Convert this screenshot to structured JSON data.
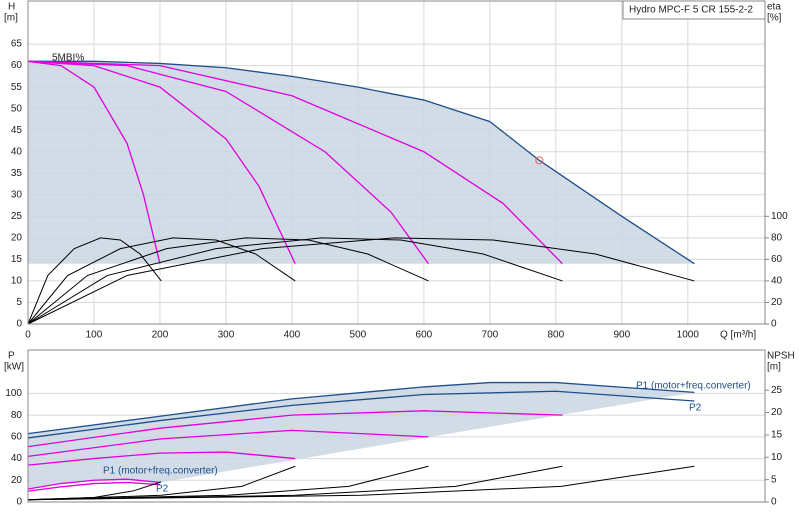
{
  "chart_data": [
    {
      "type": "line",
      "title": "Hydro MPC-F 5 CR 155-2-2",
      "annotation": "5MBI%",
      "y_label": "H",
      "y_unit": "[m]",
      "y2_label": "eta",
      "y2_unit": "[%]",
      "x_label": "Q [m³/h]",
      "xlim": [
        0,
        1117
      ],
      "xticks": [
        0,
        100,
        200,
        300,
        400,
        500,
        600,
        700,
        800,
        900,
        1000
      ],
      "ylim": [
        0,
        75
      ],
      "yticks": [
        0,
        5,
        10,
        15,
        20,
        25,
        30,
        35,
        40,
        45,
        50,
        55,
        60,
        65
      ],
      "y2lim": [
        0,
        300
      ],
      "y2ticks": [
        0,
        20,
        40,
        60,
        80,
        100
      ],
      "grid": true,
      "area_color": "#c9d6e3",
      "point": {
        "x": 775,
        "y": 38,
        "color": "#e06060"
      },
      "series": [
        {
          "color": "#1f4e8c",
          "x": [
            0,
            100,
            200,
            300,
            400,
            500,
            600,
            700,
            775,
            900,
            1010
          ],
          "values": [
            61,
            61,
            60.5,
            59.5,
            57.5,
            55,
            52,
            47,
            38,
            25,
            14
          ]
        },
        {
          "color": "#e000e0",
          "x": [
            0,
            50,
            100,
            150,
            175,
            200
          ],
          "values": [
            61,
            60,
            55,
            42,
            30,
            14
          ]
        },
        {
          "color": "#e000e0",
          "x": [
            0,
            100,
            200,
            300,
            350,
            405
          ],
          "values": [
            61,
            60,
            55,
            43,
            32,
            14
          ]
        },
        {
          "color": "#e000e0",
          "x": [
            0,
            150,
            300,
            450,
            550,
            607
          ],
          "values": [
            61,
            60,
            54,
            40,
            26,
            14
          ]
        },
        {
          "color": "#e000e0",
          "x": [
            0,
            200,
            400,
            600,
            720,
            810
          ],
          "values": [
            61,
            60,
            53,
            40,
            28,
            14
          ]
        },
        {
          "color": "#000000",
          "axis": "y2",
          "x": [
            0,
            30,
            70,
            110,
            140,
            170,
            202
          ],
          "values": [
            0,
            45,
            70,
            80,
            78,
            65,
            40
          ]
        },
        {
          "color": "#000000",
          "axis": "y2",
          "x": [
            0,
            60,
            140,
            220,
            285,
            345,
            405
          ],
          "values": [
            0,
            45,
            70,
            80,
            78,
            65,
            40
          ]
        },
        {
          "color": "#000000",
          "axis": "y2",
          "x": [
            0,
            90,
            210,
            330,
            425,
            515,
            607
          ],
          "values": [
            0,
            45,
            70,
            80,
            78,
            65,
            40
          ]
        },
        {
          "color": "#000000",
          "axis": "y2",
          "x": [
            0,
            120,
            285,
            445,
            565,
            690,
            810
          ],
          "values": [
            0,
            45,
            70,
            80,
            78,
            65,
            40
          ]
        },
        {
          "color": "#000000",
          "axis": "y2",
          "x": [
            0,
            150,
            355,
            555,
            705,
            860,
            1010
          ],
          "values": [
            0,
            45,
            70,
            80,
            78,
            65,
            40
          ]
        }
      ]
    },
    {
      "type": "line",
      "y_label": "P",
      "y_unit": "[kW]",
      "y2_label": "NPSH",
      "y2_unit": "[m]",
      "xlim": [
        0,
        1117
      ],
      "ylim": [
        0,
        140
      ],
      "yticks": [
        0,
        20,
        40,
        60,
        80,
        100
      ],
      "y2lim": [
        0,
        34
      ],
      "y2ticks": [
        0,
        5,
        10,
        15,
        20,
        25
      ],
      "grid": true,
      "area_color": "#c9d6e3",
      "annotations": [
        "P1 (motor+freq.converter)",
        "P2",
        "P1 (motor+freq.converter)",
        "P2"
      ],
      "series": [
        {
          "color": "#1f4e8c",
          "x": [
            0,
            200,
            400,
            600,
            700,
            800,
            1010
          ],
          "values": [
            63,
            79,
            95,
            106,
            110,
            110,
            101
          ]
        },
        {
          "color": "#1f4e8c",
          "x": [
            0,
            200,
            400,
            600,
            800,
            1010
          ],
          "values": [
            59,
            75,
            89,
            99,
            102,
            93
          ]
        },
        {
          "color": "#e000e0",
          "x": [
            0,
            200,
            400,
            600,
            810
          ],
          "values": [
            51,
            68,
            80,
            84,
            80
          ]
        },
        {
          "color": "#e000e0",
          "x": [
            0,
            200,
            400,
            607
          ],
          "values": [
            42,
            58,
            66,
            60
          ]
        },
        {
          "color": "#e000e0",
          "x": [
            0,
            100,
            200,
            300,
            405
          ],
          "values": [
            34,
            40,
            45,
            46,
            40
          ]
        },
        {
          "color": "#e000e0",
          "x": [
            0,
            50,
            100,
            150,
            200
          ],
          "values": [
            12,
            17,
            20,
            21,
            18
          ]
        },
        {
          "color": "#e000e0",
          "x": [
            0,
            50,
            100,
            150,
            200
          ],
          "values": [
            10,
            14,
            17,
            18,
            16
          ]
        },
        {
          "color": "#000000",
          "axis": "y2",
          "x": [
            0,
            100,
            160,
            202
          ],
          "values": [
            0.5,
            1,
            2.5,
            4.5
          ]
        },
        {
          "color": "#000000",
          "axis": "y2",
          "x": [
            0,
            202,
            324,
            405
          ],
          "values": [
            0.5,
            1.5,
            3.5,
            8
          ]
        },
        {
          "color": "#000000",
          "axis": "y2",
          "x": [
            0,
            303,
            486,
            607
          ],
          "values": [
            0.5,
            1.5,
            3.5,
            8
          ]
        },
        {
          "color": "#000000",
          "axis": "y2",
          "x": [
            0,
            405,
            648,
            810
          ],
          "values": [
            0.5,
            1.5,
            3.5,
            8
          ]
        },
        {
          "color": "#000000",
          "axis": "y2",
          "x": [
            0,
            505,
            808,
            1010
          ],
          "values": [
            0.5,
            1.5,
            3.5,
            8
          ]
        }
      ]
    }
  ]
}
